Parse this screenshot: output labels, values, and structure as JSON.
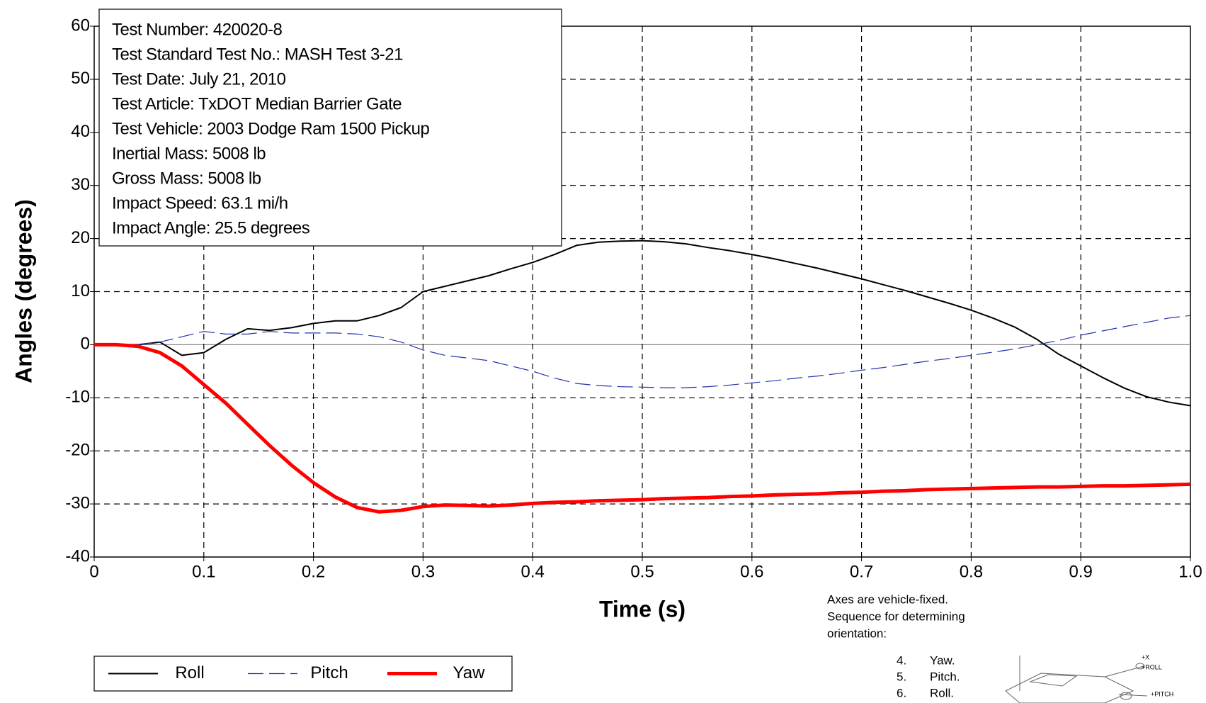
{
  "chart_data": {
    "type": "line",
    "x_label": "Time (s)",
    "y_label": "Angles (degrees)",
    "x": [
      0,
      0.02,
      0.04,
      0.06,
      0.08,
      0.1,
      0.12,
      0.14,
      0.16,
      0.18,
      0.2,
      0.22,
      0.24,
      0.26,
      0.28,
      0.3,
      0.32,
      0.34,
      0.36,
      0.38,
      0.4,
      0.42,
      0.44,
      0.46,
      0.48,
      0.5,
      0.52,
      0.54,
      0.56,
      0.58,
      0.6,
      0.62,
      0.64,
      0.66,
      0.68,
      0.7,
      0.72,
      0.74,
      0.76,
      0.78,
      0.8,
      0.82,
      0.84,
      0.86,
      0.88,
      0.9,
      0.92,
      0.94,
      0.96,
      0.98,
      1.0
    ],
    "series": [
      {
        "name": "Roll",
        "color": "#000000",
        "width": 2,
        "style": "solid",
        "values": [
          0,
          0,
          0,
          0.5,
          -2,
          -1.5,
          1,
          3,
          2.7,
          3.2,
          4,
          4.5,
          4.5,
          5.5,
          7,
          10,
          11,
          12,
          13,
          14.3,
          15.5,
          17,
          18.7,
          19.3,
          19.5,
          19.6,
          19.4,
          19,
          18.3,
          17.7,
          17,
          16.2,
          15.3,
          14.4,
          13.4,
          12.4,
          11.3,
          10.2,
          9,
          7.8,
          6.5,
          5,
          3.3,
          1,
          -1.8,
          -4,
          -6.2,
          -8.2,
          -9.8,
          -10.8,
          -11.5
        ]
      },
      {
        "name": "Pitch",
        "color": "#2233aa",
        "width": 1.2,
        "style": "dashed",
        "values": [
          0,
          0,
          0,
          0.5,
          1.5,
          2.5,
          2,
          2,
          2.5,
          2.2,
          2.2,
          2.2,
          2,
          1.5,
          0.5,
          -1,
          -2,
          -2.5,
          -3,
          -4,
          -5,
          -6.3,
          -7.3,
          -7.7,
          -7.9,
          -8,
          -8.1,
          -8.1,
          -7.9,
          -7.6,
          -7.2,
          -6.8,
          -6.3,
          -5.9,
          -5.4,
          -4.8,
          -4.3,
          -3.7,
          -3.1,
          -2.6,
          -2,
          -1.4,
          -0.8,
          0,
          0.8,
          1.8,
          2.6,
          3.4,
          4.2,
          5,
          5.5
        ]
      },
      {
        "name": "Yaw",
        "color": "#ff0000",
        "width": 5,
        "style": "solid",
        "values": [
          0,
          0,
          -0.3,
          -1.5,
          -4,
          -7.5,
          -11,
          -15,
          -19,
          -22.7,
          -26,
          -28.7,
          -30.7,
          -31.5,
          -31.2,
          -30.5,
          -30.2,
          -30.3,
          -30.4,
          -30.2,
          -29.9,
          -29.7,
          -29.6,
          -29.4,
          -29.3,
          -29.2,
          -29,
          -28.9,
          -28.8,
          -28.6,
          -28.5,
          -28.3,
          -28.2,
          -28.1,
          -27.9,
          -27.8,
          -27.6,
          -27.5,
          -27.3,
          -27.2,
          -27.1,
          -27,
          -26.9,
          -26.8,
          -26.8,
          -26.7,
          -26.6,
          -26.6,
          -26.5,
          -26.4,
          -26.3
        ]
      }
    ],
    "xlim": [
      0,
      1
    ],
    "xticks": [
      0,
      0.1,
      0.2,
      0.3,
      0.4,
      0.5,
      0.6,
      0.7,
      0.8,
      0.9,
      {
        "value": 1,
        "label": "1.0"
      }
    ],
    "ylim": [
      -40,
      60
    ],
    "yticks": [
      -40,
      -30,
      -20,
      -10,
      0,
      10,
      20,
      30,
      40,
      50,
      60
    ],
    "grid": true,
    "info_box": [
      "Test Number: 420020-8",
      "Test Standard Test No.: MASH Test 3-21",
      "Test Date: July 21, 2010",
      "Test Article: TxDOT Median Barrier Gate",
      "Test Vehicle: 2003 Dodge Ram 1500 Pickup",
      "Inertial Mass: 5008 lb",
      "Gross Mass: 5008 lb",
      "Impact Speed: 63.1 mi/h",
      "Impact Angle: 25.5 degrees"
    ],
    "note": [
      "Axes are vehicle-fixed.",
      "Sequence for determining",
      "orientation:"
    ],
    "note_list": [
      [
        "4.",
        "Yaw."
      ],
      [
        "5.",
        "Pitch."
      ],
      [
        "6.",
        "Roll."
      ]
    ],
    "diagram_labels": [
      "+X",
      "+ROLL",
      "+PITCH"
    ]
  }
}
